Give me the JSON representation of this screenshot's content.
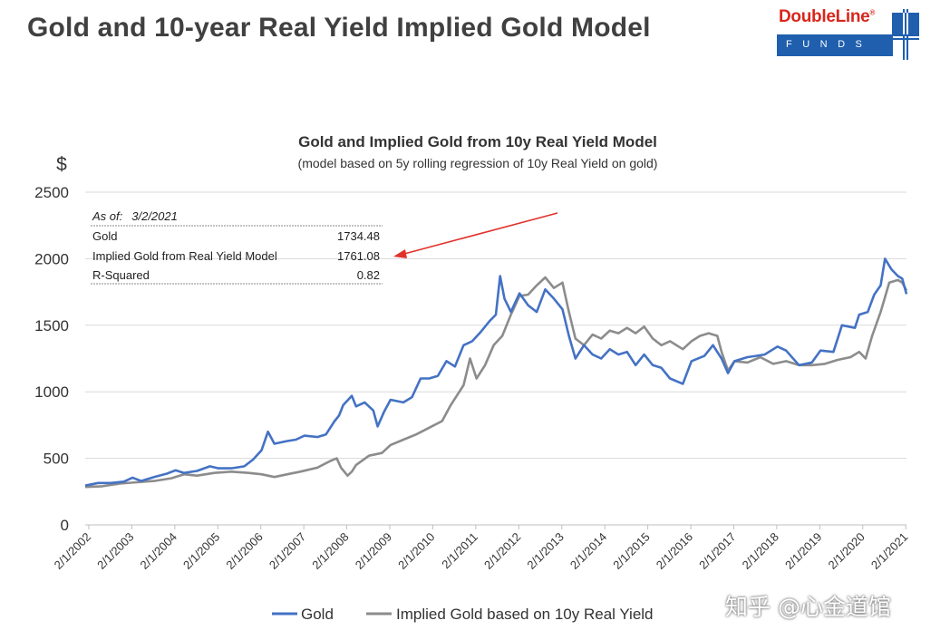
{
  "page": {
    "title": "Gold and 10-year Real Yield Implied Gold Model",
    "logo_top": "DoubleLine",
    "logo_reg": "®",
    "logo_bottom": "FUNDS",
    "watermark": "知乎 @心金道馆"
  },
  "colors": {
    "gold": "#4472c4",
    "implied": "#8c8c8c",
    "arrow": "#e0312a",
    "grid": "#d9d9d9"
  },
  "chart_data": {
    "type": "line",
    "title": "Gold and Implied Gold from 10y Real Yield Model",
    "subtitle": "(model based on 5y rolling regression of 10y Real Yield on gold)",
    "ylabel": "$",
    "ylim": [
      0,
      2500
    ],
    "yticks": [
      "0",
      "500",
      "1000",
      "1500",
      "2000",
      "2500"
    ],
    "xlim": [
      2002.0,
      2021.1
    ],
    "xticks": [
      "2/1/2002",
      "2/1/2003",
      "2/1/2004",
      "2/1/2005",
      "2/1/2006",
      "2/1/2007",
      "2/1/2008",
      "2/1/2009",
      "2/1/2010",
      "2/1/2011",
      "2/1/2012",
      "2/1/2013",
      "2/1/2014",
      "2/1/2015",
      "2/1/2016",
      "2/1/2017",
      "2/1/2018",
      "2/1/2019",
      "2/1/2020",
      "2/1/2021"
    ],
    "grid": "horizontal",
    "legend_position": "bottom",
    "stats_box": {
      "as_of_label": "As of:",
      "as_of_date": "3/2/2021",
      "rows": [
        {
          "label": "Gold",
          "value": "1734.48"
        },
        {
          "label": "Implied Gold from Real Yield Model",
          "value": "1761.08"
        },
        {
          "label": "R-Squared",
          "value": "0.82"
        }
      ]
    },
    "series": [
      {
        "name": "Gold",
        "points": [
          [
            2002.0,
            295
          ],
          [
            2002.3,
            315
          ],
          [
            2002.6,
            315
          ],
          [
            2002.9,
            325
          ],
          [
            2003.1,
            355
          ],
          [
            2003.3,
            330
          ],
          [
            2003.6,
            360
          ],
          [
            2003.9,
            385
          ],
          [
            2004.1,
            410
          ],
          [
            2004.3,
            390
          ],
          [
            2004.6,
            405
          ],
          [
            2004.9,
            440
          ],
          [
            2005.1,
            425
          ],
          [
            2005.4,
            425
          ],
          [
            2005.7,
            440
          ],
          [
            2005.9,
            490
          ],
          [
            2006.1,
            560
          ],
          [
            2006.25,
            700
          ],
          [
            2006.4,
            610
          ],
          [
            2006.7,
            630
          ],
          [
            2006.9,
            640
          ],
          [
            2007.1,
            670
          ],
          [
            2007.4,
            660
          ],
          [
            2007.6,
            680
          ],
          [
            2007.8,
            780
          ],
          [
            2007.9,
            820
          ],
          [
            2008.0,
            900
          ],
          [
            2008.2,
            970
          ],
          [
            2008.3,
            890
          ],
          [
            2008.5,
            920
          ],
          [
            2008.7,
            860
          ],
          [
            2008.8,
            740
          ],
          [
            2008.95,
            850
          ],
          [
            2009.1,
            940
          ],
          [
            2009.4,
            920
          ],
          [
            2009.6,
            960
          ],
          [
            2009.8,
            1100
          ],
          [
            2010.0,
            1100
          ],
          [
            2010.2,
            1120
          ],
          [
            2010.4,
            1230
          ],
          [
            2010.6,
            1190
          ],
          [
            2010.8,
            1350
          ],
          [
            2011.0,
            1380
          ],
          [
            2011.2,
            1450
          ],
          [
            2011.4,
            1530
          ],
          [
            2011.55,
            1580
          ],
          [
            2011.65,
            1870
          ],
          [
            2011.75,
            1700
          ],
          [
            2011.9,
            1600
          ],
          [
            2012.1,
            1740
          ],
          [
            2012.3,
            1650
          ],
          [
            2012.5,
            1600
          ],
          [
            2012.7,
            1770
          ],
          [
            2012.9,
            1700
          ],
          [
            2013.1,
            1620
          ],
          [
            2013.25,
            1420
          ],
          [
            2013.4,
            1250
          ],
          [
            2013.6,
            1350
          ],
          [
            2013.8,
            1280
          ],
          [
            2014.0,
            1250
          ],
          [
            2014.2,
            1320
          ],
          [
            2014.4,
            1280
          ],
          [
            2014.6,
            1300
          ],
          [
            2014.8,
            1200
          ],
          [
            2015.0,
            1280
          ],
          [
            2015.2,
            1200
          ],
          [
            2015.4,
            1180
          ],
          [
            2015.6,
            1100
          ],
          [
            2015.9,
            1060
          ],
          [
            2016.1,
            1230
          ],
          [
            2016.4,
            1270
          ],
          [
            2016.6,
            1350
          ],
          [
            2016.8,
            1250
          ],
          [
            2016.95,
            1140
          ],
          [
            2017.1,
            1230
          ],
          [
            2017.4,
            1260
          ],
          [
            2017.6,
            1270
          ],
          [
            2017.8,
            1280
          ],
          [
            2018.1,
            1340
          ],
          [
            2018.3,
            1310
          ],
          [
            2018.6,
            1200
          ],
          [
            2018.9,
            1220
          ],
          [
            2019.1,
            1310
          ],
          [
            2019.4,
            1300
          ],
          [
            2019.6,
            1500
          ],
          [
            2019.9,
            1480
          ],
          [
            2020.0,
            1580
          ],
          [
            2020.2,
            1600
          ],
          [
            2020.35,
            1730
          ],
          [
            2020.5,
            1800
          ],
          [
            2020.6,
            2000
          ],
          [
            2020.75,
            1920
          ],
          [
            2020.9,
            1870
          ],
          [
            2021.0,
            1850
          ],
          [
            2021.1,
            1734
          ]
        ]
      },
      {
        "name": "Implied Gold based on 10y Real Yield",
        "points": [
          [
            2002.0,
            285
          ],
          [
            2002.4,
            290
          ],
          [
            2002.8,
            310
          ],
          [
            2003.2,
            320
          ],
          [
            2003.6,
            330
          ],
          [
            2004.0,
            350
          ],
          [
            2004.3,
            380
          ],
          [
            2004.6,
            370
          ],
          [
            2005.0,
            390
          ],
          [
            2005.4,
            400
          ],
          [
            2005.8,
            390
          ],
          [
            2006.1,
            380
          ],
          [
            2006.4,
            360
          ],
          [
            2006.7,
            380
          ],
          [
            2007.0,
            400
          ],
          [
            2007.4,
            430
          ],
          [
            2007.7,
            480
          ],
          [
            2007.85,
            500
          ],
          [
            2007.95,
            430
          ],
          [
            2008.1,
            370
          ],
          [
            2008.2,
            400
          ],
          [
            2008.3,
            450
          ],
          [
            2008.6,
            520
          ],
          [
            2008.9,
            540
          ],
          [
            2009.1,
            600
          ],
          [
            2009.4,
            640
          ],
          [
            2009.7,
            680
          ],
          [
            2010.0,
            730
          ],
          [
            2010.3,
            780
          ],
          [
            2010.5,
            900
          ],
          [
            2010.8,
            1050
          ],
          [
            2010.95,
            1250
          ],
          [
            2011.1,
            1100
          ],
          [
            2011.3,
            1200
          ],
          [
            2011.5,
            1350
          ],
          [
            2011.7,
            1420
          ],
          [
            2011.9,
            1580
          ],
          [
            2012.1,
            1720
          ],
          [
            2012.3,
            1730
          ],
          [
            2012.5,
            1800
          ],
          [
            2012.7,
            1860
          ],
          [
            2012.9,
            1780
          ],
          [
            2013.1,
            1820
          ],
          [
            2013.25,
            1600
          ],
          [
            2013.4,
            1400
          ],
          [
            2013.6,
            1350
          ],
          [
            2013.8,
            1430
          ],
          [
            2014.0,
            1400
          ],
          [
            2014.2,
            1460
          ],
          [
            2014.4,
            1440
          ],
          [
            2014.6,
            1480
          ],
          [
            2014.8,
            1440
          ],
          [
            2015.0,
            1490
          ],
          [
            2015.2,
            1400
          ],
          [
            2015.4,
            1350
          ],
          [
            2015.6,
            1380
          ],
          [
            2015.9,
            1320
          ],
          [
            2016.1,
            1380
          ],
          [
            2016.3,
            1420
          ],
          [
            2016.5,
            1440
          ],
          [
            2016.7,
            1420
          ],
          [
            2016.8,
            1300
          ],
          [
            2016.95,
            1160
          ],
          [
            2017.1,
            1230
          ],
          [
            2017.4,
            1220
          ],
          [
            2017.7,
            1260
          ],
          [
            2018.0,
            1210
          ],
          [
            2018.3,
            1230
          ],
          [
            2018.6,
            1200
          ],
          [
            2018.9,
            1200
          ],
          [
            2019.2,
            1210
          ],
          [
            2019.5,
            1240
          ],
          [
            2019.8,
            1260
          ],
          [
            2020.0,
            1300
          ],
          [
            2020.15,
            1250
          ],
          [
            2020.3,
            1420
          ],
          [
            2020.5,
            1600
          ],
          [
            2020.7,
            1820
          ],
          [
            2020.9,
            1840
          ],
          [
            2021.0,
            1820
          ],
          [
            2021.1,
            1761
          ]
        ]
      }
    ]
  }
}
